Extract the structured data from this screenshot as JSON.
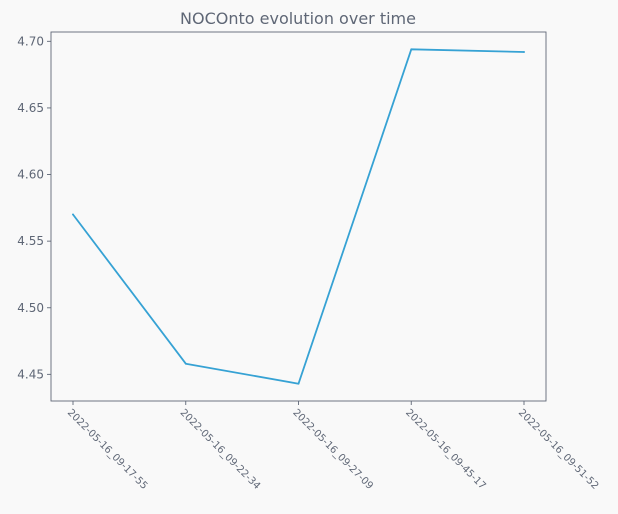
{
  "chart_data": {
    "type": "line",
    "title": "NOCOnto evolution over time",
    "xlabel": "",
    "ylabel": "",
    "categories": [
      "2022-05-16_09-17-55",
      "2022-05-16_09-22-34",
      "2022-05-16_09-27-09",
      "2022-05-16_09-45-17",
      "2022-05-16_09-51-52"
    ],
    "series": [
      {
        "values": [
          4.57,
          4.458,
          4.443,
          4.694,
          4.692
        ],
        "color": "#36a2d4"
      }
    ],
    "ylim": [
      4.43,
      4.707
    ],
    "yticks": [
      "4.45",
      "4.50",
      "4.55",
      "4.60",
      "4.65",
      "4.70"
    ],
    "grid": false,
    "colors": {
      "background": "#f9f9f9",
      "text": "#5f6776",
      "line": "#36a2d4"
    }
  }
}
